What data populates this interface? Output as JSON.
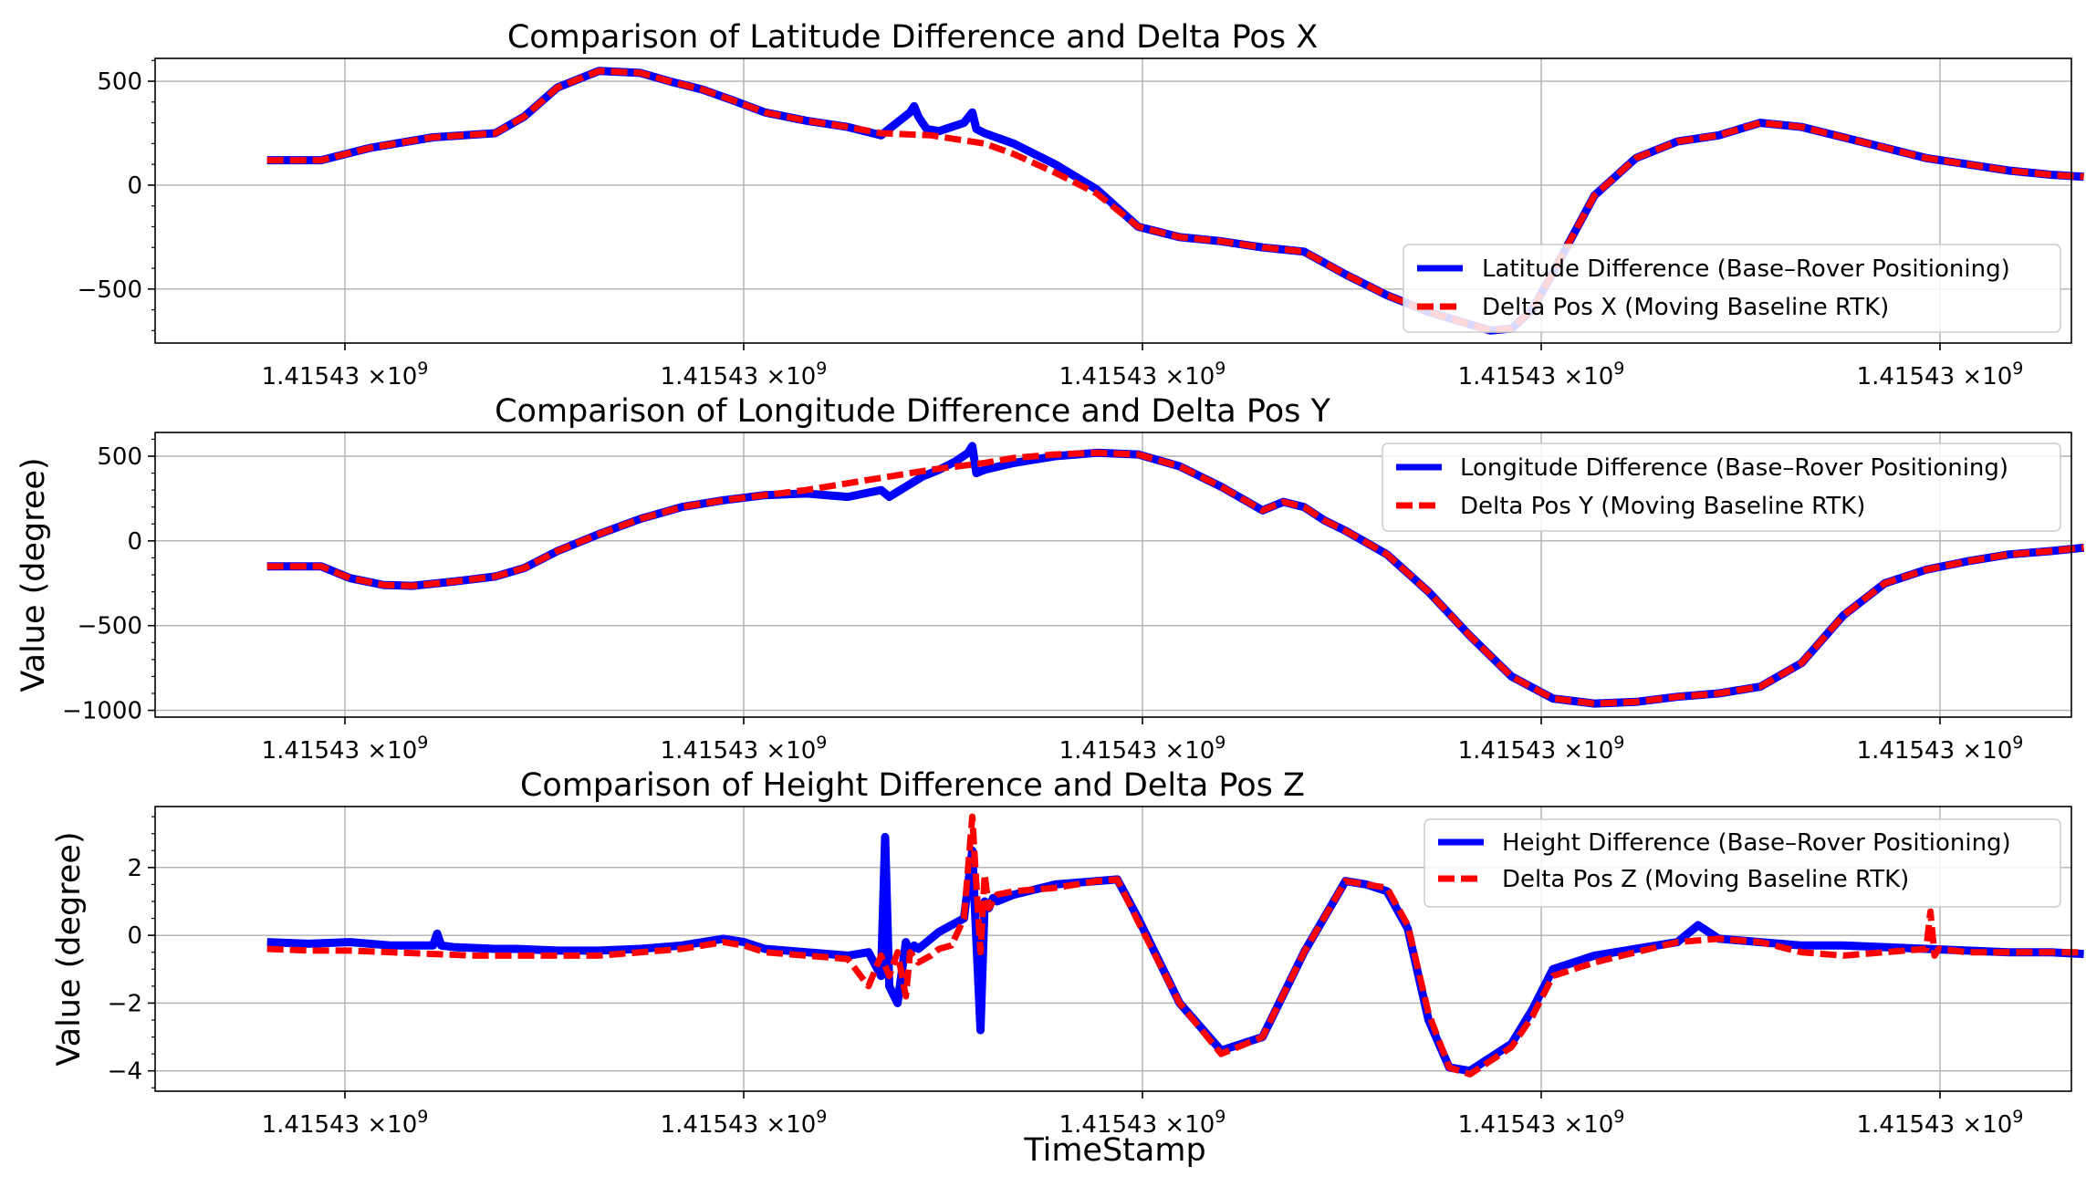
{
  "figure": {
    "xlabel": "TimeStamp",
    "x_tick_labels": [
      "1.41543",
      "1.41543",
      "1.41543",
      "1.41543",
      "1.41543"
    ],
    "x_tick_exponent": "9",
    "x_tick_times": "×10",
    "x_range": [
      -0.27,
      4.35
    ]
  },
  "chart_data": [
    {
      "type": "line",
      "title": "Comparison of Latitude Difference and Delta Pos X",
      "xlabel": "",
      "ylabel": "",
      "ylim": [
        -760,
        610
      ],
      "yticks": [
        500,
        0,
        -500
      ],
      "ytick_labels": [
        "500",
        "0",
        "−500"
      ],
      "minor_ytick_step": 100,
      "legend": {
        "position": "lower-right"
      },
      "series": [
        {
          "name": "Latitude Difference (Base–Rover Positioning)",
          "color": "#0000ff",
          "style": "solid",
          "x": [
            0,
            0.13,
            0.25,
            0.4,
            0.55,
            0.62,
            0.7,
            0.8,
            0.9,
            0.97,
            1.05,
            1.12,
            1.2,
            1.3,
            1.4,
            1.48,
            1.55,
            1.56,
            1.57,
            1.58,
            1.59,
            1.62,
            1.65,
            1.68,
            1.7,
            1.71,
            1.72,
            1.73,
            1.8,
            1.9,
            2.0,
            2.1,
            2.2,
            2.3,
            2.4,
            2.5,
            2.6,
            2.7,
            2.8,
            2.9,
            2.95,
            3.0,
            3.05,
            3.1,
            3.2,
            3.3,
            3.4,
            3.5,
            3.6,
            3.7,
            3.8,
            3.9,
            4.0,
            4.1,
            4.2,
            4.3,
            4.38
          ],
          "y": [
            120,
            120,
            180,
            230,
            250,
            330,
            470,
            550,
            540,
            500,
            460,
            410,
            350,
            310,
            280,
            240,
            350,
            380,
            330,
            300,
            270,
            260,
            280,
            300,
            350,
            270,
            260,
            250,
            200,
            100,
            -20,
            -200,
            -250,
            -270,
            -300,
            -320,
            -430,
            -530,
            -610,
            -670,
            -700,
            -690,
            -600,
            -420,
            -50,
            130,
            210,
            240,
            300,
            280,
            230,
            180,
            130,
            100,
            70,
            50,
            40
          ]
        },
        {
          "name": "Delta Pos X (Moving Baseline RTK)",
          "color": "#ff0000",
          "style": "dashed",
          "x": [
            0,
            0.13,
            0.25,
            0.4,
            0.55,
            0.62,
            0.7,
            0.8,
            0.9,
            0.97,
            1.05,
            1.12,
            1.2,
            1.3,
            1.4,
            1.48,
            1.6,
            1.73,
            1.8,
            1.9,
            2.0,
            2.1,
            2.2,
            2.3,
            2.4,
            2.5,
            2.6,
            2.7,
            2.8,
            2.9,
            2.95,
            3.0,
            3.05,
            3.1,
            3.2,
            3.3,
            3.4,
            3.5,
            3.6,
            3.7,
            3.8,
            3.9,
            4.0,
            4.1,
            4.2,
            4.3,
            4.38
          ],
          "y": [
            120,
            120,
            180,
            230,
            250,
            330,
            470,
            550,
            540,
            500,
            460,
            410,
            350,
            310,
            280,
            250,
            240,
            200,
            150,
            60,
            -40,
            -200,
            -250,
            -270,
            -300,
            -320,
            -430,
            -530,
            -610,
            -670,
            -700,
            -690,
            -600,
            -420,
            -50,
            130,
            210,
            240,
            300,
            280,
            230,
            180,
            130,
            100,
            70,
            50,
            40
          ]
        }
      ]
    },
    {
      "type": "line",
      "title": "Comparison of Longitude Difference and Delta Pos Y",
      "xlabel": "",
      "ylabel": "Value (degree)",
      "ylim": [
        -1040,
        640
      ],
      "yticks": [
        500,
        0,
        -500,
        -1000
      ],
      "ytick_labels": [
        "500",
        "0",
        "−500",
        "−1000"
      ],
      "minor_ytick_step": 100,
      "legend": {
        "position": "upper-right"
      },
      "series": [
        {
          "name": "Longitude Difference (Base–Rover Positioning)",
          "color": "#0000ff",
          "style": "solid",
          "x": [
            0,
            0.13,
            0.2,
            0.28,
            0.35,
            0.45,
            0.55,
            0.62,
            0.7,
            0.8,
            0.9,
            1.0,
            1.1,
            1.2,
            1.3,
            1.4,
            1.48,
            1.5,
            1.52,
            1.54,
            1.56,
            1.58,
            1.62,
            1.66,
            1.69,
            1.7,
            1.71,
            1.72,
            1.73,
            1.8,
            1.9,
            2.0,
            2.1,
            2.2,
            2.3,
            2.4,
            2.45,
            2.5,
            2.55,
            2.6,
            2.7,
            2.8,
            2.9,
            3.0,
            3.1,
            3.2,
            3.3,
            3.4,
            3.5,
            3.6,
            3.7,
            3.8,
            3.9,
            4.0,
            4.1,
            4.2,
            4.3,
            4.38
          ],
          "y": [
            -150,
            -150,
            -220,
            -260,
            -265,
            -240,
            -210,
            -160,
            -60,
            40,
            130,
            200,
            240,
            270,
            280,
            260,
            300,
            260,
            290,
            320,
            350,
            380,
            420,
            470,
            520,
            560,
            400,
            410,
            420,
            460,
            500,
            520,
            510,
            440,
            320,
            180,
            230,
            200,
            120,
            60,
            -80,
            -300,
            -560,
            -800,
            -930,
            -960,
            -950,
            -920,
            -900,
            -860,
            -720,
            -440,
            -250,
            -170,
            -120,
            -80,
            -60,
            -40
          ]
        },
        {
          "name": "Delta Pos Y (Moving Baseline RTK)",
          "color": "#ff0000",
          "style": "dashed",
          "x": [
            0,
            0.13,
            0.2,
            0.28,
            0.35,
            0.45,
            0.55,
            0.62,
            0.7,
            0.8,
            0.9,
            1.0,
            1.1,
            1.2,
            1.3,
            1.4,
            1.5,
            1.6,
            1.73,
            1.8,
            1.9,
            2.0,
            2.1,
            2.2,
            2.3,
            2.4,
            2.45,
            2.5,
            2.55,
            2.6,
            2.7,
            2.8,
            2.9,
            3.0,
            3.1,
            3.2,
            3.3,
            3.4,
            3.5,
            3.6,
            3.7,
            3.8,
            3.9,
            4.0,
            4.1,
            4.2,
            4.3,
            4.38
          ],
          "y": [
            -150,
            -150,
            -220,
            -260,
            -265,
            -240,
            -210,
            -160,
            -60,
            40,
            130,
            200,
            240,
            270,
            300,
            340,
            380,
            420,
            460,
            490,
            510,
            520,
            510,
            440,
            320,
            180,
            230,
            200,
            120,
            60,
            -80,
            -300,
            -560,
            -800,
            -930,
            -960,
            -950,
            -920,
            -900,
            -860,
            -720,
            -440,
            -250,
            -170,
            -120,
            -80,
            -60,
            -40
          ]
        }
      ]
    },
    {
      "type": "line",
      "title": "Comparison of Height Difference and Delta Pos Z",
      "xlabel": "TimeStamp",
      "ylabel": "Value (degree)",
      "ylim": [
        -4.6,
        3.8
      ],
      "yticks": [
        2,
        0,
        -2,
        -4
      ],
      "ytick_labels": [
        "2",
        "0",
        "−2",
        "−4"
      ],
      "minor_ytick_step": 0.5,
      "legend": {
        "position": "upper-right"
      },
      "series": [
        {
          "name": "Height Difference (Base–Rover Positioning)",
          "color": "#0000ff",
          "style": "solid",
          "x": [
            0,
            0.1,
            0.2,
            0.3,
            0.4,
            0.41,
            0.42,
            0.45,
            0.55,
            0.6,
            0.7,
            0.8,
            0.9,
            1.0,
            1.1,
            1.15,
            1.2,
            1.3,
            1.4,
            1.45,
            1.48,
            1.49,
            1.5,
            1.52,
            1.54,
            1.55,
            1.56,
            1.57,
            1.58,
            1.6,
            1.62,
            1.65,
            1.68,
            1.7,
            1.72,
            1.73,
            1.74,
            1.75,
            1.76,
            1.8,
            1.9,
            2.0,
            2.05,
            2.1,
            2.2,
            2.3,
            2.4,
            2.5,
            2.6,
            2.65,
            2.7,
            2.75,
            2.8,
            2.85,
            2.9,
            3.0,
            3.05,
            3.1,
            3.2,
            3.3,
            3.4,
            3.45,
            3.5,
            3.6,
            3.7,
            3.8,
            3.9,
            4.0,
            4.1,
            4.2,
            4.3,
            4.38
          ],
          "y": [
            -0.2,
            -0.25,
            -0.2,
            -0.3,
            -0.3,
            0.05,
            -0.3,
            -0.35,
            -0.4,
            -0.4,
            -0.45,
            -0.45,
            -0.4,
            -0.3,
            -0.1,
            -0.2,
            -0.4,
            -0.5,
            -0.6,
            -0.5,
            -1.2,
            2.9,
            -1.5,
            -2.0,
            -0.2,
            -0.5,
            -0.3,
            -0.4,
            -0.3,
            -0.1,
            0.1,
            0.3,
            0.5,
            2.5,
            -2.8,
            1.0,
            0.8,
            1.1,
            1.0,
            1.2,
            1.5,
            1.6,
            1.65,
            0.5,
            -2.0,
            -3.4,
            -3.0,
            -0.5,
            1.6,
            1.5,
            1.3,
            0.2,
            -2.5,
            -3.9,
            -4.0,
            -3.2,
            -2.2,
            -1.0,
            -0.6,
            -0.4,
            -0.2,
            0.3,
            -0.1,
            -0.2,
            -0.3,
            -0.3,
            -0.35,
            -0.4,
            -0.45,
            -0.5,
            -0.5,
            -0.55
          ]
        },
        {
          "name": "Delta Pos Z (Moving Baseline RTK)",
          "color": "#ff0000",
          "style": "dashed",
          "x": [
            0,
            0.1,
            0.2,
            0.3,
            0.4,
            0.5,
            0.6,
            0.7,
            0.8,
            0.9,
            1.0,
            1.1,
            1.15,
            1.2,
            1.3,
            1.4,
            1.45,
            1.48,
            1.5,
            1.52,
            1.54,
            1.55,
            1.57,
            1.6,
            1.62,
            1.65,
            1.68,
            1.7,
            1.72,
            1.73,
            1.74,
            1.75,
            1.76,
            1.8,
            1.9,
            2.0,
            2.05,
            2.1,
            2.2,
            2.3,
            2.4,
            2.5,
            2.6,
            2.65,
            2.7,
            2.75,
            2.8,
            2.85,
            2.9,
            3.0,
            3.05,
            3.1,
            3.2,
            3.3,
            3.4,
            3.5,
            3.6,
            3.7,
            3.8,
            3.9,
            4.0,
            4.01,
            4.02,
            4.03,
            4.1,
            4.2,
            4.3,
            4.38
          ],
          "y": [
            -0.4,
            -0.45,
            -0.45,
            -0.5,
            -0.55,
            -0.6,
            -0.6,
            -0.6,
            -0.6,
            -0.5,
            -0.4,
            -0.2,
            -0.3,
            -0.5,
            -0.6,
            -0.7,
            -1.5,
            -0.6,
            -1.2,
            -0.5,
            -1.8,
            -0.5,
            -0.8,
            -0.6,
            -0.4,
            -0.3,
            0.5,
            3.5,
            -0.5,
            1.8,
            0.8,
            1.0,
            1.2,
            1.3,
            1.4,
            1.6,
            1.65,
            0.4,
            -2.0,
            -3.5,
            -3.0,
            -0.5,
            1.6,
            1.5,
            1.4,
            0.3,
            -2.3,
            -3.9,
            -4.1,
            -3.3,
            -2.4,
            -1.2,
            -0.8,
            -0.5,
            -0.2,
            -0.1,
            -0.2,
            -0.5,
            -0.6,
            -0.5,
            -0.4,
            0.7,
            -0.6,
            -0.4,
            -0.5,
            -0.5,
            -0.5,
            -0.5
          ]
        }
      ]
    }
  ]
}
